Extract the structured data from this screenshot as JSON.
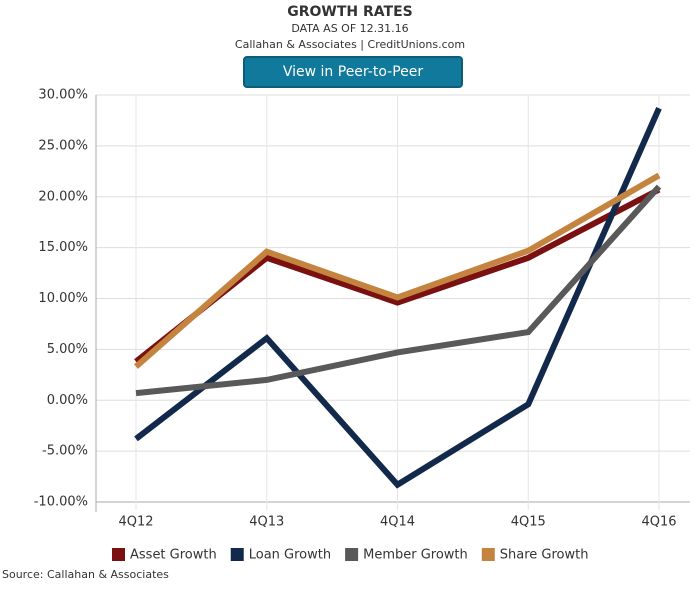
{
  "chart_data": {
    "type": "line",
    "title": "GROWTH RATES",
    "subtitle": "DATA AS OF 12.31.16",
    "credit": "Callahan & Associates | CreditUnions.com",
    "categories": [
      "4Q12",
      "4Q13",
      "4Q14",
      "4Q15",
      "4Q16"
    ],
    "series": [
      {
        "name": "Asset Growth",
        "color": "#7a1010",
        "values": [
          3.8,
          14.0,
          9.6,
          14.0,
          20.7
        ]
      },
      {
        "name": "Loan Growth",
        "color": "#13294b",
        "values": [
          -3.8,
          6.1,
          -8.3,
          -0.4,
          28.7
        ]
      },
      {
        "name": "Member Growth",
        "color": "#595959",
        "values": [
          0.7,
          2.0,
          4.7,
          6.7,
          21.0
        ]
      },
      {
        "name": "Share Growth",
        "color": "#c4843f",
        "values": [
          3.3,
          14.6,
          10.1,
          14.7,
          22.1
        ]
      }
    ],
    "ylim": [
      -10,
      30
    ],
    "yticks": [
      {
        "value": -10,
        "label": "-10.00%"
      },
      {
        "value": -5,
        "label": "-5.00%"
      },
      {
        "value": 0,
        "label": "0.00%"
      },
      {
        "value": 5,
        "label": "5.00%"
      },
      {
        "value": 10,
        "label": "10.00%"
      },
      {
        "value": 15,
        "label": "15.00%"
      },
      {
        "value": 20,
        "label": "20.00%"
      },
      {
        "value": 25,
        "label": "25.00%"
      },
      {
        "value": 30,
        "label": "30.00%"
      }
    ],
    "grid": true
  },
  "button": {
    "label": "View in Peer-to-Peer"
  },
  "source": "Source: Callahan & Associates"
}
